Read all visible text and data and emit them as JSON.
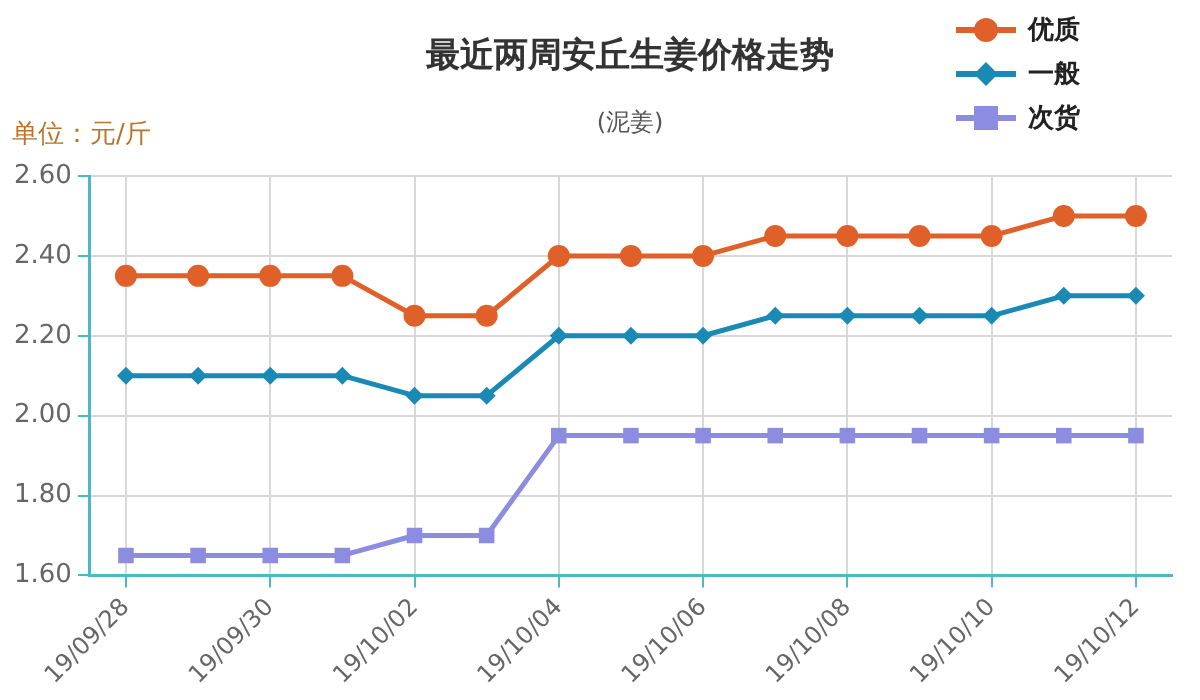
{
  "chart_data": {
    "type": "line",
    "title": "最近两周安丘生姜价格走势",
    "subtitle": "(泥姜)",
    "ylabel": "单位：元/斤",
    "categories": [
      "19/09/28",
      null,
      "19/09/30",
      null,
      "19/10/02",
      null,
      "19/10/04",
      null,
      "19/10/06",
      null,
      "19/10/08",
      null,
      "19/10/10",
      null,
      "19/10/12"
    ],
    "series": [
      {
        "name": "优质",
        "color": "#e0602a",
        "marker": "circle",
        "values": [
          2.35,
          2.35,
          2.35,
          2.35,
          2.25,
          2.25,
          2.4,
          2.4,
          2.4,
          2.45,
          2.45,
          2.45,
          2.45,
          2.5,
          2.5
        ]
      },
      {
        "name": "一般",
        "color": "#1a8ab5",
        "marker": "diamond",
        "values": [
          2.1,
          2.1,
          2.1,
          2.1,
          2.05,
          2.05,
          2.2,
          2.2,
          2.2,
          2.25,
          2.25,
          2.25,
          2.25,
          2.3,
          2.3
        ]
      },
      {
        "name": "次货",
        "color": "#8c8ce0",
        "marker": "square",
        "values": [
          1.65,
          1.65,
          1.65,
          1.65,
          1.7,
          1.7,
          1.95,
          1.95,
          1.95,
          1.95,
          1.95,
          1.95,
          1.95,
          1.95,
          1.95
        ]
      }
    ],
    "ylim": [
      1.6,
      2.6
    ],
    "yticks": [
      {
        "value": 1.6,
        "label": "1.60"
      },
      {
        "value": 1.8,
        "label": "1.80"
      },
      {
        "value": 2.0,
        "label": "2.00"
      },
      {
        "value": 2.2,
        "label": "2.20"
      },
      {
        "value": 2.4,
        "label": "2.40"
      },
      {
        "value": 2.6,
        "label": "2.60"
      }
    ],
    "grid": true,
    "legend": "top right",
    "line_style": "solid"
  }
}
